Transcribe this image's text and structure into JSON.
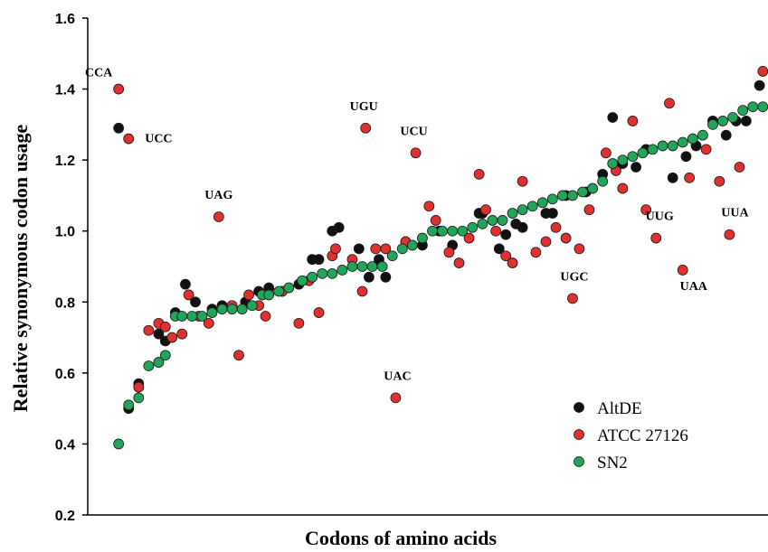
{
  "chart_data": {
    "type": "scatter",
    "xlabel": "Codons of amino acids",
    "ylabel": "Relative synonymous codon usage",
    "ylim": [
      0.2,
      1.6
    ],
    "xlim": [
      0,
      100
    ],
    "y_ticks": [
      "0.2",
      "0.4",
      "0.6",
      "0.8",
      "1.0",
      "1.2",
      "1.4",
      "1.6"
    ],
    "grid": false,
    "legend_position": "bottom-right",
    "series": [
      {
        "name": "AltDE",
        "color": "#111111",
        "points": [
          [
            3,
            1.29
          ],
          [
            4.5,
            0.5
          ],
          [
            6,
            0.57
          ],
          [
            9,
            0.71
          ],
          [
            10,
            0.69
          ],
          [
            11.5,
            0.77
          ],
          [
            13,
            0.85
          ],
          [
            14.5,
            0.8
          ],
          [
            17,
            0.78
          ],
          [
            18.5,
            0.79
          ],
          [
            22,
            0.8
          ],
          [
            24,
            0.83
          ],
          [
            25.5,
            0.84
          ],
          [
            27.5,
            0.83
          ],
          [
            30,
            0.85
          ],
          [
            32,
            0.92
          ],
          [
            33,
            0.92
          ],
          [
            35,
            1.0
          ],
          [
            36,
            1.01
          ],
          [
            39,
            0.95
          ],
          [
            40.5,
            0.87
          ],
          [
            42,
            0.92
          ],
          [
            43,
            0.87
          ],
          [
            46,
            0.97
          ],
          [
            48.5,
            0.96
          ],
          [
            51,
            1.0
          ],
          [
            53,
            0.96
          ],
          [
            57,
            1.05
          ],
          [
            57.5,
            1.05
          ],
          [
            60,
            0.95
          ],
          [
            61,
            0.99
          ],
          [
            62.5,
            1.02
          ],
          [
            63.5,
            1.01
          ],
          [
            67,
            1.05
          ],
          [
            68,
            1.05
          ],
          [
            70,
            1.1
          ],
          [
            73,
            1.11
          ],
          [
            75.5,
            1.16
          ],
          [
            77,
            1.32
          ],
          [
            78.5,
            1.19
          ],
          [
            80.5,
            1.18
          ],
          [
            82,
            1.23
          ],
          [
            86,
            1.15
          ],
          [
            88,
            1.21
          ],
          [
            89.5,
            1.24
          ],
          [
            92,
            1.31
          ],
          [
            94,
            1.27
          ],
          [
            95.5,
            1.31
          ],
          [
            97,
            1.31
          ],
          [
            99,
            1.41
          ]
        ]
      },
      {
        "name": "ATCC 27126",
        "color": "#e03030",
        "points": [
          [
            3,
            1.4
          ],
          [
            4.5,
            1.26
          ],
          [
            6,
            0.56
          ],
          [
            7.5,
            0.72
          ],
          [
            9,
            0.74
          ],
          [
            10,
            0.73
          ],
          [
            11,
            0.7
          ],
          [
            12.5,
            0.71
          ],
          [
            13.5,
            0.82
          ],
          [
            15,
            0.76
          ],
          [
            16.5,
            0.74
          ],
          [
            18,
            1.04
          ],
          [
            20,
            0.79
          ],
          [
            21,
            0.65
          ],
          [
            22.5,
            0.82
          ],
          [
            24,
            0.79
          ],
          [
            25,
            0.76
          ],
          [
            27.5,
            0.83
          ],
          [
            30,
            0.74
          ],
          [
            31.5,
            0.86
          ],
          [
            33,
            0.77
          ],
          [
            35,
            0.93
          ],
          [
            35.5,
            0.95
          ],
          [
            38,
            0.92
          ],
          [
            39.5,
            0.83
          ],
          [
            40,
            1.29
          ],
          [
            41.5,
            0.95
          ],
          [
            43,
            0.95
          ],
          [
            44.5,
            0.53
          ],
          [
            46,
            0.97
          ],
          [
            47.5,
            1.22
          ],
          [
            49.5,
            1.07
          ],
          [
            50.5,
            1.03
          ],
          [
            52.5,
            0.94
          ],
          [
            54,
            0.91
          ],
          [
            55.5,
            0.98
          ],
          [
            57,
            1.16
          ],
          [
            58,
            1.06
          ],
          [
            59.5,
            1.0
          ],
          [
            61,
            0.93
          ],
          [
            62,
            0.91
          ],
          [
            63.5,
            1.14
          ],
          [
            65.5,
            0.94
          ],
          [
            67,
            0.97
          ],
          [
            68.5,
            1.01
          ],
          [
            70,
            0.98
          ],
          [
            71,
            0.81
          ],
          [
            72,
            0.95
          ],
          [
            73.5,
            1.06
          ],
          [
            76,
            1.22
          ],
          [
            77.5,
            1.17
          ],
          [
            78.5,
            1.12
          ],
          [
            80,
            1.31
          ],
          [
            82,
            1.06
          ],
          [
            83.5,
            0.98
          ],
          [
            85.5,
            1.36
          ],
          [
            87.5,
            0.89
          ],
          [
            88.5,
            1.15
          ],
          [
            91,
            1.23
          ],
          [
            93,
            1.14
          ],
          [
            94.5,
            0.99
          ],
          [
            96,
            1.18
          ],
          [
            99.5,
            1.45
          ]
        ]
      },
      {
        "name": "SN2",
        "color": "#22a55a",
        "points": [
          [
            3,
            0.4
          ],
          [
            4.5,
            0.51
          ],
          [
            6,
            0.53
          ],
          [
            7.5,
            0.62
          ],
          [
            9,
            0.63
          ],
          [
            10,
            0.65
          ],
          [
            11.5,
            0.76
          ],
          [
            12.5,
            0.76
          ],
          [
            14,
            0.76
          ],
          [
            15.5,
            0.76
          ],
          [
            17,
            0.77
          ],
          [
            18.5,
            0.78
          ],
          [
            20,
            0.78
          ],
          [
            21.5,
            0.78
          ],
          [
            23,
            0.79
          ],
          [
            24.5,
            0.82
          ],
          [
            25.5,
            0.82
          ],
          [
            27,
            0.83
          ],
          [
            28.5,
            0.84
          ],
          [
            30.5,
            0.86
          ],
          [
            32,
            0.87
          ],
          [
            33.5,
            0.88
          ],
          [
            35,
            0.88
          ],
          [
            36.5,
            0.89
          ],
          [
            38,
            0.9
          ],
          [
            39.5,
            0.9
          ],
          [
            41,
            0.9
          ],
          [
            42.5,
            0.9
          ],
          [
            44,
            0.93
          ],
          [
            45.5,
            0.95
          ],
          [
            47,
            0.96
          ],
          [
            48.5,
            0.98
          ],
          [
            50,
            1.0
          ],
          [
            51.5,
            1.0
          ],
          [
            53,
            1.0
          ],
          [
            54.5,
            1.0
          ],
          [
            56,
            1.01
          ],
          [
            57.5,
            1.02
          ],
          [
            59,
            1.03
          ],
          [
            60.5,
            1.03
          ],
          [
            62,
            1.05
          ],
          [
            63.5,
            1.06
          ],
          [
            65,
            1.07
          ],
          [
            66.5,
            1.08
          ],
          [
            68,
            1.09
          ],
          [
            69.5,
            1.1
          ],
          [
            71,
            1.1
          ],
          [
            72.5,
            1.11
          ],
          [
            74,
            1.12
          ],
          [
            75.5,
            1.14
          ],
          [
            77,
            1.19
          ],
          [
            78.5,
            1.2
          ],
          [
            80,
            1.21
          ],
          [
            81.5,
            1.22
          ],
          [
            83,
            1.23
          ],
          [
            84.5,
            1.24
          ],
          [
            86,
            1.24
          ],
          [
            87.5,
            1.25
          ],
          [
            89,
            1.26
          ],
          [
            90.5,
            1.27
          ],
          [
            92,
            1.3
          ],
          [
            93.5,
            1.31
          ],
          [
            95,
            1.32
          ],
          [
            96.5,
            1.34
          ],
          [
            98,
            1.35
          ],
          [
            99.5,
            1.35
          ]
        ]
      }
    ],
    "annotations": [
      {
        "text": "CCA",
        "x": 3,
        "y": 1.4
      },
      {
        "text": "UCC",
        "x": 4.5,
        "y": 1.26
      },
      {
        "text": "UGU",
        "x": 40,
        "y": 1.29
      },
      {
        "text": "UCU",
        "x": 47.5,
        "y": 1.22
      },
      {
        "text": "UAG",
        "x": 18,
        "y": 1.04
      },
      {
        "text": "UAC",
        "x": 44.5,
        "y": 0.53
      },
      {
        "text": "UGC",
        "x": 71,
        "y": 0.81
      },
      {
        "text": "UUG",
        "x": 83.5,
        "y": 0.98
      },
      {
        "text": "UAA",
        "x": 87.5,
        "y": 0.89
      },
      {
        "text": "UUA",
        "x": 94.5,
        "y": 0.99
      }
    ]
  }
}
